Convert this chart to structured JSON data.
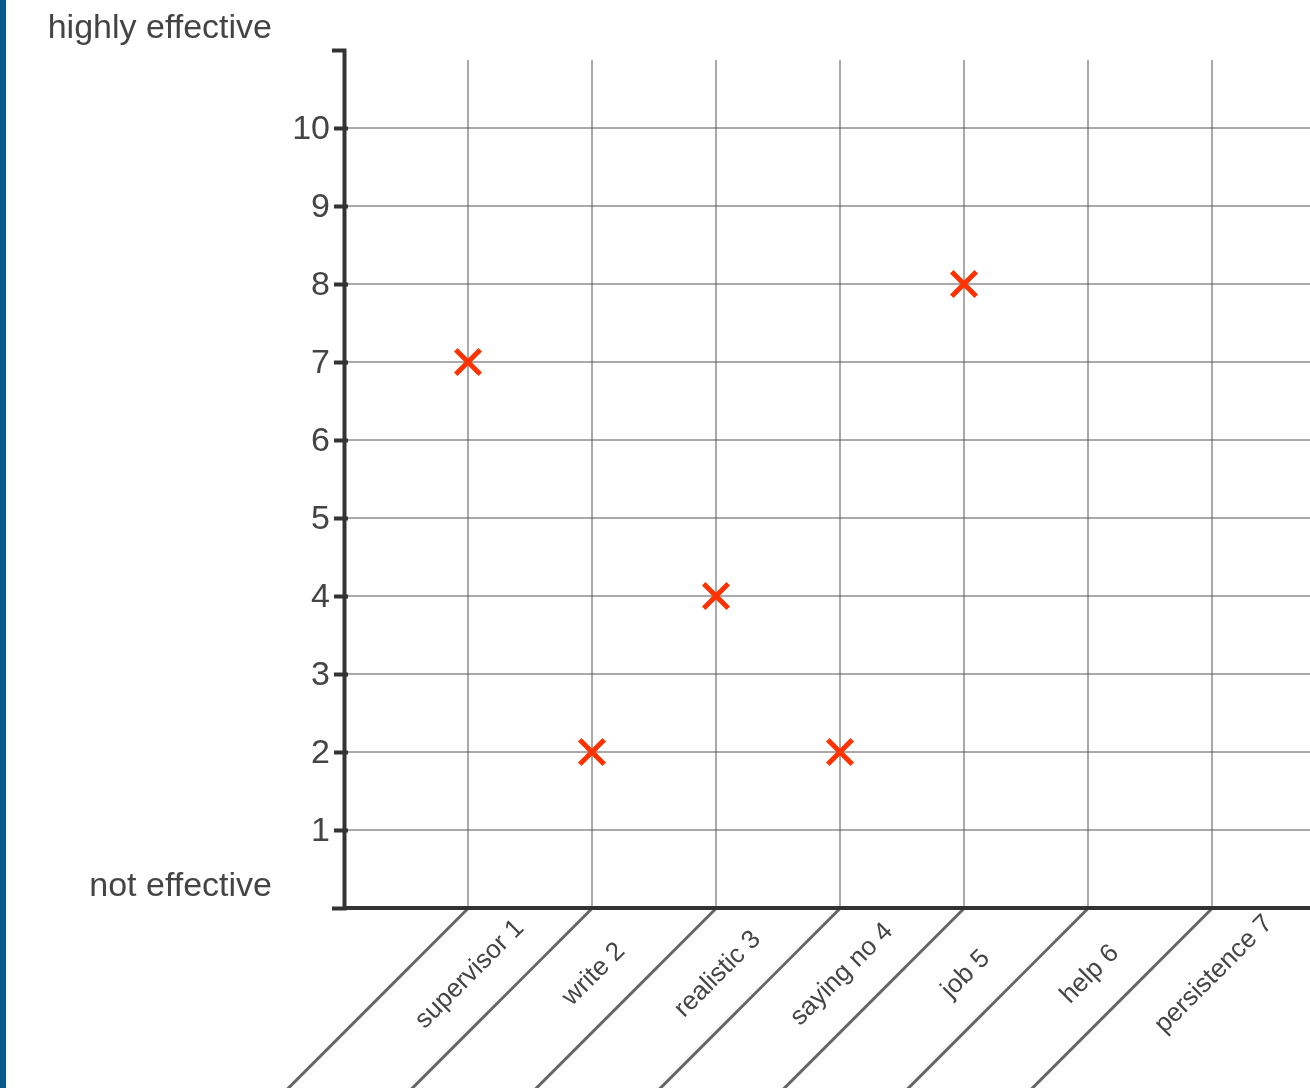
{
  "chart_data": {
    "type": "scatter",
    "categories": [
      "supervisor 1",
      "write 2",
      "realistic 3",
      "saying no 4",
      "job 5",
      "help 6",
      "persistence 7"
    ],
    "series": [
      {
        "color": "#ff3300",
        "values": [
          7,
          2,
          4,
          2,
          8,
          null,
          null
        ]
      }
    ],
    "ylim": [
      0,
      11
    ],
    "yticks": [
      1,
      2,
      3,
      4,
      5,
      6,
      7,
      8,
      9,
      10
    ],
    "grid": true,
    "marker": "cross",
    "annotations": [
      "highly effective",
      "not effective"
    ]
  }
}
